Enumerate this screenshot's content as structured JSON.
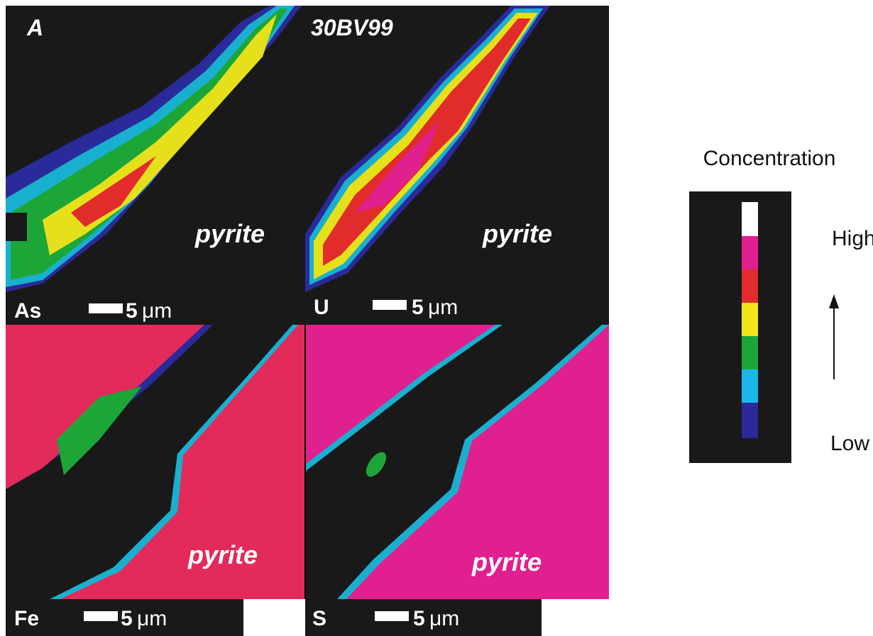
{
  "figure_label": "A",
  "sample": "30BV99",
  "panels": [
    {
      "element": "As",
      "mineral": "pyrite",
      "scale_value": 5,
      "scale_unit": "μm"
    },
    {
      "element": "U",
      "mineral": "pyrite",
      "scale_value": 5,
      "scale_unit": "μm"
    },
    {
      "element": "Fe",
      "mineral": "pyrite",
      "scale_value": 5,
      "scale_unit": "μm"
    },
    {
      "element": "S",
      "mineral": "pyrite",
      "scale_value": 5,
      "scale_unit": "μm"
    }
  ],
  "legend": {
    "title": "Concentration",
    "high": "High",
    "low": "Low"
  }
}
